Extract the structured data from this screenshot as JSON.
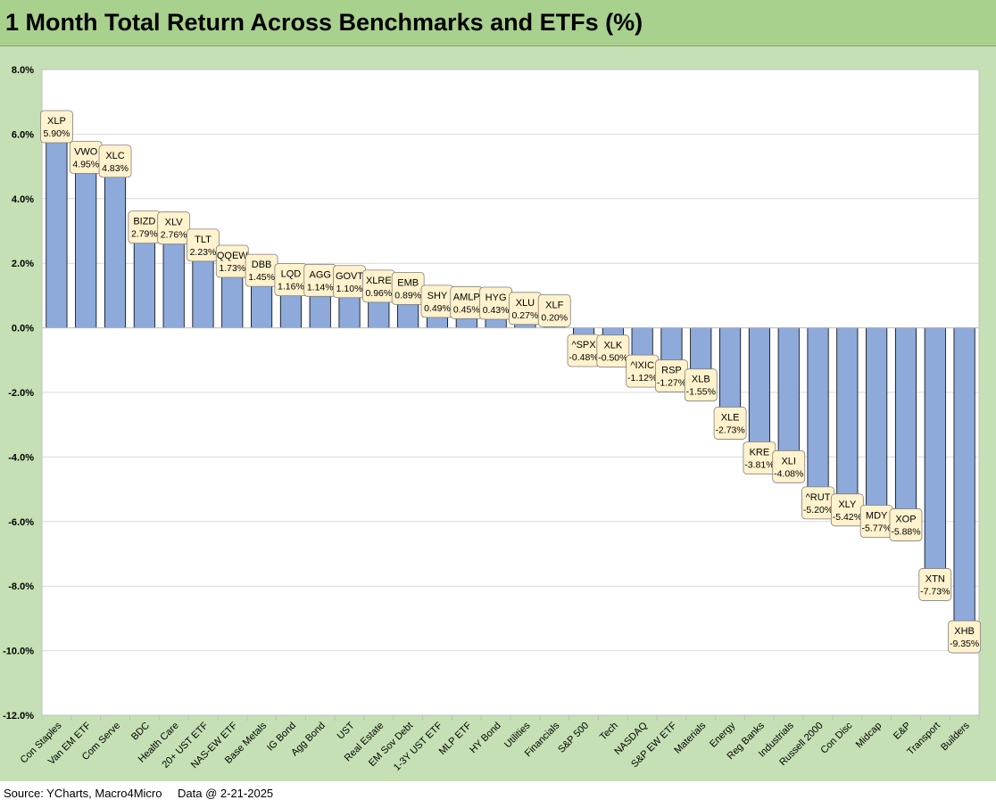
{
  "title": "1 Month Total Return Across Benchmarks and ETFs (%)",
  "footer": {
    "source": "Source: YCharts, Macro4Micro",
    "date": "Data @ 2-21-2025"
  },
  "colors": {
    "header_bg": "#a9d18e",
    "chart_bg": "#c5e0b4",
    "bar_fill": "#8eaadb",
    "bar_stroke": "#000000",
    "label_fill": "#fff2cc",
    "label_stroke": "#7f7f7f"
  },
  "chart_data": {
    "type": "bar",
    "title": "1 Month Total Return Across Benchmarks and ETFs (%)",
    "ylim": [
      -12,
      8
    ],
    "yticks": [
      -12,
      -10,
      -8,
      -6,
      -4,
      -2,
      0,
      2,
      4,
      6,
      8
    ],
    "ytick_labels": [
      "-12.0%",
      "-10.0%",
      "-8.0%",
      "-6.0%",
      "-4.0%",
      "-2.0%",
      "0.0%",
      "2.0%",
      "4.0%",
      "6.0%",
      "8.0%"
    ],
    "grid": true,
    "categories": [
      "Con Staples",
      "Van EM ETF",
      "Com Serve",
      "BDC",
      "Health Care",
      "20+ UST ETF",
      "NAS-EW ETF",
      "Base Metals",
      "IG Bond",
      "Agg Bond",
      "UST",
      "Real Estate",
      "EM Sov Debt",
      "1-3Y UST ETF",
      "MLP ETF",
      "HY Bond",
      "Utilities",
      "Financials",
      "S&P 500",
      "Tech",
      "NASDAQ",
      "S&P EW ETF",
      "Materials",
      "Energy",
      "Reg Banks",
      "Industrials",
      "Russell 2000",
      "Con Disc",
      "Midcap",
      "E&P",
      "Transport",
      "Builders"
    ],
    "tickers": [
      "XLP",
      "VWO",
      "XLC",
      "BIZD",
      "XLV",
      "TLT",
      "QQEW",
      "DBB",
      "LQD",
      "AGG",
      "GOVT",
      "XLRE",
      "EMB",
      "SHY",
      "AMLP",
      "HYG",
      "XLU",
      "XLF",
      "^SPX",
      "XLK",
      "^IXIC",
      "RSP",
      "XLB",
      "XLE",
      "KRE",
      "XLI",
      "^RUT",
      "XLY",
      "MDY",
      "XOP",
      "XTN",
      "XHB"
    ],
    "values": [
      5.9,
      4.95,
      4.83,
      2.79,
      2.76,
      2.23,
      1.73,
      1.45,
      1.16,
      1.14,
      1.1,
      0.96,
      0.89,
      0.49,
      0.45,
      0.43,
      0.27,
      0.2,
      -0.48,
      -0.5,
      -1.12,
      -1.27,
      -1.55,
      -2.73,
      -3.81,
      -4.08,
      -5.2,
      -5.42,
      -5.77,
      -5.88,
      -7.73,
      -9.35
    ],
    "value_labels": [
      "5.90%",
      "4.95%",
      "4.83%",
      "2.79%",
      "2.76%",
      "2.23%",
      "1.73%",
      "1.45%",
      "1.16%",
      "1.14%",
      "1.10%",
      "0.96%",
      "0.89%",
      "0.49%",
      "0.45%",
      "0.43%",
      "0.27%",
      "0.20%",
      "-0.48%",
      "-0.50%",
      "-1.12%",
      "-1.27%",
      "-1.55%",
      "-2.73%",
      "-3.81%",
      "-4.08%",
      "-5.20%",
      "-5.42%",
      "-5.77%",
      "-5.88%",
      "-7.73%",
      "-9.35%"
    ]
  }
}
